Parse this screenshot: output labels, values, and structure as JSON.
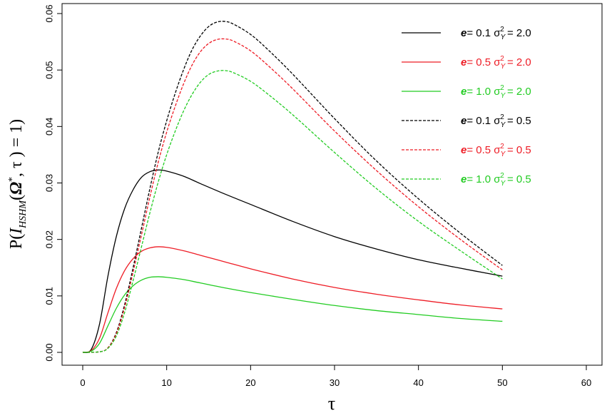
{
  "chart_data": {
    "type": "line",
    "title": "",
    "xlabel": "τ",
    "ylabel": "P(I_HSHM(Ω*, τ) = 1)",
    "ylabel_parts": {
      "p": "P(",
      "i": "I",
      "sub": "HSHM",
      "open": "(",
      "omega": "Ω",
      "star": "*",
      "rest": ", τ ) = 1)"
    },
    "xlim": [
      0,
      60
    ],
    "ylim": [
      0,
      0.06
    ],
    "xticks": [
      "0",
      "10",
      "20",
      "30",
      "40",
      "50",
      "60"
    ],
    "yticks": [
      "0.00",
      "0.01",
      "0.02",
      "0.03",
      "0.04",
      "0.05",
      "0.06"
    ],
    "grid": false,
    "legend_position": "top-right",
    "series": [
      {
        "name": "e= 0.1 σY2 = 2.0",
        "legend": {
          "e": "e",
          "eval": "= 0.1",
          "sigma": "σ",
          "sub": "Y",
          "sup": "2",
          "sval": "= 2.0"
        },
        "color": "#000000",
        "dash": "solid",
        "x": [
          0,
          1,
          2,
          3,
          4,
          5,
          6,
          7,
          8,
          9,
          10,
          12,
          14,
          17,
          20,
          25,
          30,
          35,
          40,
          45,
          50
        ],
        "y": [
          0,
          0.0005,
          0.005,
          0.0135,
          0.0205,
          0.0255,
          0.0288,
          0.031,
          0.032,
          0.0323,
          0.0321,
          0.0312,
          0.0299,
          0.028,
          0.0262,
          0.0232,
          0.0205,
          0.0183,
          0.0164,
          0.0149,
          0.0135
        ]
      },
      {
        "name": "e= 0.5 σY2 = 2.0",
        "legend": {
          "e": "e",
          "eval": "= 0.5",
          "sigma": "σ",
          "sub": "Y",
          "sup": "2",
          "sval": "= 2.0"
        },
        "color": "#ee1c25",
        "dash": "solid",
        "x": [
          0,
          1,
          2,
          3,
          4,
          5,
          6,
          7,
          8,
          9,
          10,
          12,
          14,
          17,
          20,
          25,
          30,
          35,
          40,
          45,
          50
        ],
        "y": [
          0,
          0.0003,
          0.0025,
          0.007,
          0.0113,
          0.0145,
          0.0166,
          0.0179,
          0.0185,
          0.0187,
          0.0186,
          0.018,
          0.0172,
          0.016,
          0.0148,
          0.013,
          0.0115,
          0.0103,
          0.0093,
          0.0084,
          0.0077
        ]
      },
      {
        "name": "e= 1.0 σY2 = 2.0",
        "legend": {
          "e": "e",
          "eval": "= 1.0",
          "sigma": "σ",
          "sub": "Y",
          "sup": "2",
          "sval": "= 2.0"
        },
        "color": "#22cc22",
        "dash": "solid",
        "x": [
          0,
          1,
          2,
          3,
          4,
          5,
          6,
          7,
          8,
          9,
          10,
          12,
          14,
          17,
          20,
          25,
          30,
          35,
          40,
          45,
          50
        ],
        "y": [
          0,
          0.0002,
          0.0016,
          0.0047,
          0.0078,
          0.0102,
          0.0118,
          0.0128,
          0.0133,
          0.0134,
          0.0133,
          0.0129,
          0.0123,
          0.0114,
          0.0106,
          0.0094,
          0.0083,
          0.0074,
          0.0067,
          0.006,
          0.0055
        ]
      },
      {
        "name": "e= 0.1 σY2 = 0.5",
        "legend": {
          "e": "e",
          "eval": "= 0.1",
          "sigma": "σ",
          "sub": "Y",
          "sup": "2",
          "sval": "= 0.5"
        },
        "color": "#000000",
        "dash": "dashed",
        "x": [
          0,
          2,
          3,
          4,
          5,
          6,
          7,
          8,
          9,
          10,
          11,
          12,
          13,
          14,
          15,
          16,
          17,
          18,
          20,
          22,
          25,
          30,
          35,
          40,
          45,
          50
        ],
        "y": [
          0,
          0.0001,
          0.0008,
          0.0035,
          0.0085,
          0.015,
          0.022,
          0.029,
          0.0355,
          0.041,
          0.0458,
          0.05,
          0.0535,
          0.056,
          0.0577,
          0.0585,
          0.0586,
          0.0581,
          0.0563,
          0.0537,
          0.0493,
          0.0414,
          0.0339,
          0.0272,
          0.0211,
          0.0154
        ]
      },
      {
        "name": "e= 0.5 σY2 = 0.5",
        "legend": {
          "e": "e",
          "eval": "= 0.5",
          "sigma": "σ",
          "sub": "Y",
          "sup": "2",
          "sval": "= 0.5"
        },
        "color": "#ee1c25",
        "dash": "dashed",
        "x": [
          0,
          2,
          3,
          4,
          5,
          6,
          7,
          8,
          9,
          10,
          11,
          12,
          13,
          14,
          15,
          16,
          17,
          18,
          20,
          22,
          25,
          30,
          35,
          40,
          45,
          50
        ],
        "y": [
          0,
          0.0001,
          0.0008,
          0.0033,
          0.008,
          0.0142,
          0.0208,
          0.0275,
          0.0337,
          0.039,
          0.0435,
          0.0475,
          0.0508,
          0.0532,
          0.0547,
          0.0554,
          0.0555,
          0.0551,
          0.0534,
          0.0509,
          0.0467,
          0.0392,
          0.0322,
          0.0258,
          0.02,
          0.0146
        ]
      },
      {
        "name": "e= 1.0 σY2 = 0.5",
        "legend": {
          "e": "e",
          "eval": "= 1.0",
          "sigma": "σ",
          "sub": "Y",
          "sup": "2",
          "sval": "= 0.5"
        },
        "color": "#22cc22",
        "dash": "dashed",
        "x": [
          0,
          2,
          3,
          4,
          5,
          6,
          7,
          8,
          9,
          10,
          11,
          12,
          13,
          14,
          15,
          16,
          17,
          18,
          20,
          22,
          25,
          30,
          35,
          40,
          45,
          50
        ],
        "y": [
          0,
          0.0001,
          0.0007,
          0.0029,
          0.0071,
          0.0127,
          0.0187,
          0.0247,
          0.0302,
          0.035,
          0.0391,
          0.0427,
          0.0456,
          0.0478,
          0.0492,
          0.0498,
          0.0499,
          0.0495,
          0.048,
          0.0458,
          0.0421,
          0.0354,
          0.029,
          0.0232,
          0.018,
          0.013
        ]
      }
    ]
  }
}
